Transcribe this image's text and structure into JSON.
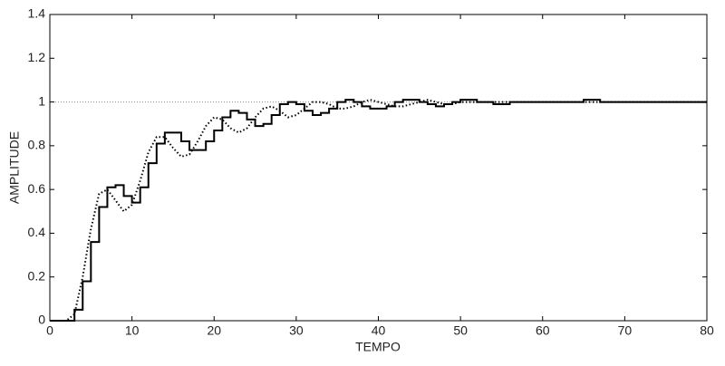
{
  "chart_data": {
    "type": "line",
    "xlabel": "TEMPO",
    "ylabel": "AMPLITUDE",
    "xlim": [
      0,
      80
    ],
    "ylim": [
      0,
      1.4
    ],
    "xticks": [
      0,
      10,
      20,
      30,
      40,
      50,
      60,
      70,
      80
    ],
    "yticks": [
      0,
      0.2,
      0.4,
      0.6,
      0.8,
      1,
      1.2,
      1.4
    ],
    "reference_line": 1,
    "series": [
      {
        "color": "#000000",
        "linestyle": "solid",
        "step": "post",
        "x": [
          0,
          1,
          2,
          3,
          4,
          5,
          6,
          7,
          8,
          9,
          10,
          11,
          12,
          13,
          14,
          15,
          16,
          17,
          18,
          19,
          20,
          21,
          22,
          23,
          24,
          25,
          26,
          27,
          28,
          29,
          30,
          31,
          32,
          33,
          34,
          35,
          36,
          37,
          38,
          39,
          40,
          41,
          42,
          43,
          44,
          45,
          46,
          47,
          48,
          49,
          50,
          51,
          52,
          53,
          54,
          55,
          56,
          60,
          63,
          65,
          67,
          70,
          73,
          75,
          80
        ],
        "values": [
          0,
          0,
          0,
          0.05,
          0.18,
          0.36,
          0.52,
          0.61,
          0.62,
          0.57,
          0.54,
          0.61,
          0.72,
          0.81,
          0.86,
          0.86,
          0.82,
          0.78,
          0.78,
          0.82,
          0.87,
          0.93,
          0.96,
          0.95,
          0.92,
          0.89,
          0.9,
          0.94,
          0.99,
          1.0,
          0.99,
          0.96,
          0.94,
          0.95,
          0.97,
          1.0,
          1.01,
          1.0,
          0.98,
          0.97,
          0.97,
          0.98,
          1.0,
          1.01,
          1.01,
          1.0,
          0.99,
          0.98,
          0.99,
          1.0,
          1.01,
          1.01,
          1.0,
          1.0,
          0.99,
          0.99,
          1.0,
          1.0,
          1.0,
          1.01,
          1.0,
          1.0,
          1.0,
          1.0,
          1.0
        ]
      },
      {
        "color": "#000000",
        "linestyle": "dotted",
        "x": [
          0,
          1,
          2,
          3,
          4,
          5,
          6,
          7,
          8,
          9,
          10,
          11,
          12,
          13,
          14,
          15,
          16,
          17,
          18,
          19,
          20,
          21,
          22,
          23,
          24,
          25,
          26,
          27,
          28,
          29,
          30,
          31,
          32,
          33,
          34,
          35,
          36,
          37,
          38,
          39,
          40,
          41,
          42,
          43,
          44,
          45,
          46,
          47,
          48,
          49,
          50,
          55,
          60,
          65,
          70,
          75,
          80
        ],
        "values": [
          0,
          0,
          0,
          0.03,
          0.2,
          0.42,
          0.58,
          0.6,
          0.55,
          0.5,
          0.53,
          0.64,
          0.77,
          0.84,
          0.84,
          0.79,
          0.75,
          0.76,
          0.82,
          0.89,
          0.93,
          0.92,
          0.88,
          0.86,
          0.88,
          0.93,
          0.97,
          0.98,
          0.96,
          0.93,
          0.94,
          0.97,
          1.0,
          1.0,
          0.99,
          0.97,
          0.97,
          0.98,
          1.0,
          1.01,
          1.0,
          0.99,
          0.98,
          0.98,
          0.99,
          1.0,
          1.01,
          1.0,
          0.99,
          0.99,
          1.0,
          1.0,
          1.0,
          1.0,
          1.0,
          1.0,
          1.0
        ]
      }
    ]
  }
}
